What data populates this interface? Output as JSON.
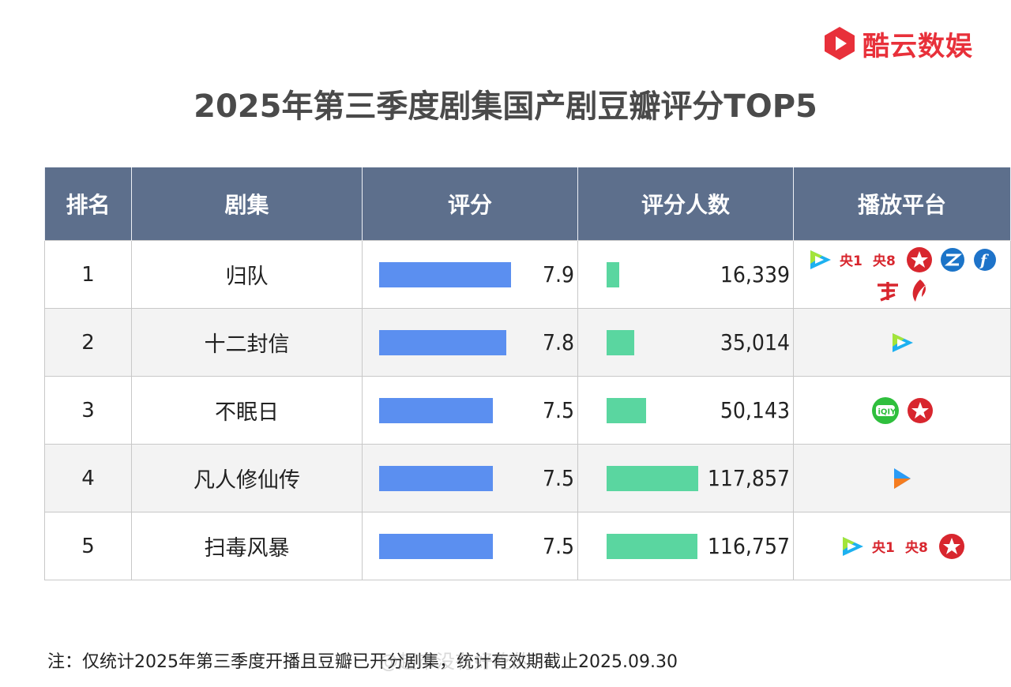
{
  "brand": {
    "name": "酷云数娱",
    "color": "#e8303a"
  },
  "title": "2025年第三季度剧集国产剧豆瓣评分TOP5",
  "table": {
    "headers": [
      "排名",
      "剧集",
      "评分",
      "评分人数",
      "播放平台"
    ],
    "header_color": "#5d6f8c"
  },
  "chart_data": {
    "type": "table",
    "title": "2025年第三季度剧集国产剧豆瓣评分TOP5",
    "columns": [
      "排名",
      "剧集",
      "评分",
      "评分人数",
      "播放平台"
    ],
    "score_bar_color": "#5b8ff0",
    "count_bar_color": "#5ad6a0",
    "score_scale": [
      5.0,
      8.0
    ],
    "count_scale": [
      0,
      135000
    ],
    "rows": [
      {
        "rank": "1",
        "title": "归队",
        "score": 7.9,
        "score_label": "7.9",
        "count": 16339,
        "count_label": "16,339",
        "platforms": [
          "tencent-video-icon",
          "cctv1-icon",
          "cctv8-icon",
          "dragon-tv-icon",
          "zhejiang-tv-icon",
          "fujian-tv-icon",
          "guangdong-tv-icon",
          "shenzhen-tv-icon"
        ]
      },
      {
        "rank": "2",
        "title": "十二封信",
        "score": 7.8,
        "score_label": "7.8",
        "count": 35014,
        "count_label": "35,014",
        "platforms": [
          "tencent-video-icon"
        ]
      },
      {
        "rank": "3",
        "title": "不眠日",
        "score": 7.5,
        "score_label": "7.5",
        "count": 50143,
        "count_label": "50,143",
        "platforms": [
          "iqiyi-icon",
          "dragon-tv-icon"
        ]
      },
      {
        "rank": "4",
        "title": "凡人修仙传",
        "score": 7.5,
        "score_label": "7.5",
        "count": 117857,
        "count_label": "117,857",
        "platforms": [
          "youku-icon"
        ]
      },
      {
        "rank": "5",
        "title": "扫毒风暴",
        "score": 7.5,
        "score_label": "7.5",
        "count": 116757,
        "count_label": "116,757",
        "platforms": [
          "tencent-video-icon",
          "cctv1-icon",
          "cctv8-icon",
          "dragon-tv-icon"
        ]
      }
    ]
  },
  "note": "注：仅统计2025年第三季度开播且豆瓣已开分剧集，统计有效期截止2025.09.30",
  "watermark": "@超市没有好吃的"
}
